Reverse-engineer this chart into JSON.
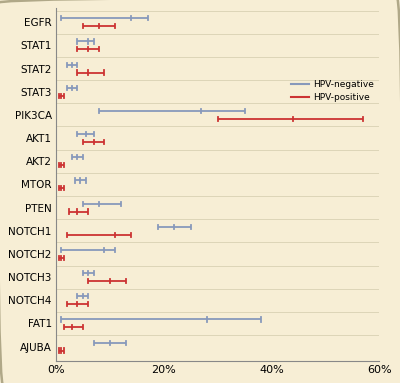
{
  "categories": [
    "EGFR",
    "STAT1",
    "STAT2",
    "STAT3",
    "PIK3CA",
    "AKT1",
    "AKT2",
    "MTOR",
    "PTEN",
    "NOTCH1",
    "NOTCH2",
    "NOTCH3",
    "NOTCH4",
    "FAT1",
    "AJUBA"
  ],
  "hpv_neg": {
    "centers": [
      14,
      6,
      3,
      3,
      27,
      5.5,
      4,
      4.5,
      8,
      22,
      9,
      6,
      5,
      28,
      10
    ],
    "lower": [
      1,
      4,
      2,
      2,
      8,
      4,
      3,
      3.5,
      5,
      19,
      1,
      5,
      4,
      1,
      7
    ],
    "upper": [
      17,
      7,
      4,
      4,
      35,
      7,
      5,
      5.5,
      12,
      25,
      11,
      7,
      6,
      38,
      13
    ]
  },
  "hpv_pos": {
    "centers": [
      8,
      6,
      6,
      1,
      44,
      7,
      1,
      1,
      4,
      11,
      1,
      10,
      4,
      3,
      1
    ],
    "lower": [
      5,
      4,
      4,
      0.5,
      30,
      5,
      0.5,
      0.5,
      2.5,
      2,
      0.5,
      6,
      2,
      1.5,
      0.5
    ],
    "upper": [
      11,
      8,
      9,
      1.5,
      57,
      9,
      1.5,
      1.5,
      6,
      14,
      1.5,
      13,
      6,
      5,
      1.5
    ]
  },
  "color_neg": "#8899bb",
  "color_pos": "#cc3333",
  "background": "#f7eed5",
  "grid_color": "#ddd5b8",
  "border_color": "#b0a888",
  "xlim": [
    0,
    60
  ],
  "xticks": [
    0,
    20,
    40,
    60
  ],
  "xticklabels": [
    "0%",
    "20%",
    "40%",
    "60%"
  ],
  "figsize": [
    4.0,
    3.83
  ],
  "dpi": 100
}
